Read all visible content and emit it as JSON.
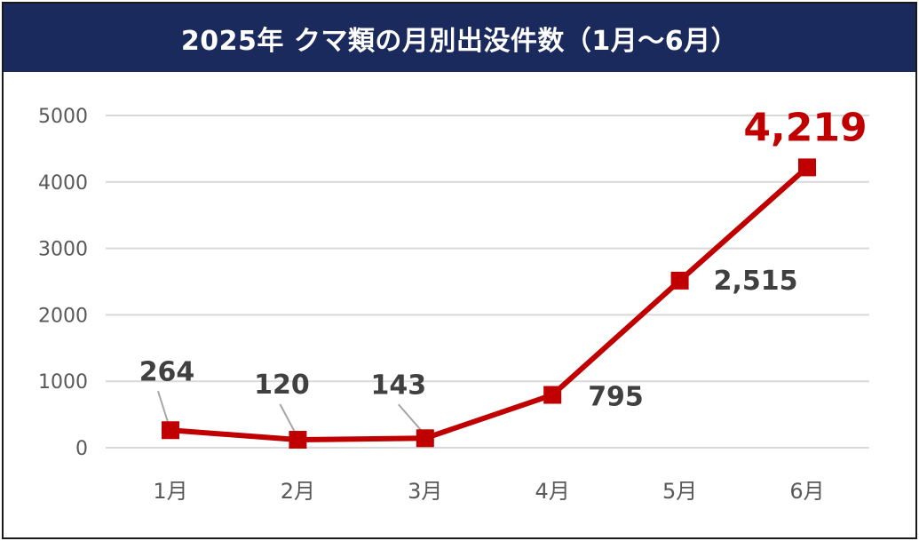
{
  "title": "2025年 クマ類の月別出没件数（1月～6月）",
  "colors": {
    "title_background": "#1b2a5c",
    "series": "#c00000",
    "highlight_label": "#c00000"
  },
  "chart_data": {
    "type": "line",
    "title": "2025年 クマ類の月別出没件数（1月～6月）",
    "categories": [
      "1月",
      "2月",
      "3月",
      "4月",
      "5月",
      "6月"
    ],
    "values": [
      264,
      120,
      143,
      795,
      2515,
      4219
    ],
    "data_labels": [
      "264",
      "120",
      "143",
      "795",
      "2,515",
      "4,219"
    ],
    "highlighted_point": "6月",
    "marker": "square",
    "ylim": [
      0,
      5000
    ],
    "yticks": [
      0,
      1000,
      2000,
      3000,
      4000,
      5000
    ],
    "ytick_labels": [
      "0",
      "1000",
      "2000",
      "3000",
      "4000",
      "5000"
    ],
    "grid": true,
    "legend": "none"
  }
}
